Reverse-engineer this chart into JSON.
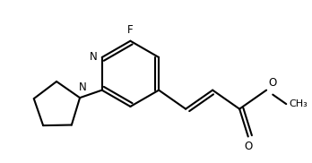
{
  "bg_color": "#ffffff",
  "line_color": "#000000",
  "line_width": 1.5,
  "font_size": 8.5,
  "figsize": [
    3.48,
    1.82
  ],
  "dpi": 100,
  "xlim": [
    0,
    348
  ],
  "ylim": [
    0,
    182
  ]
}
